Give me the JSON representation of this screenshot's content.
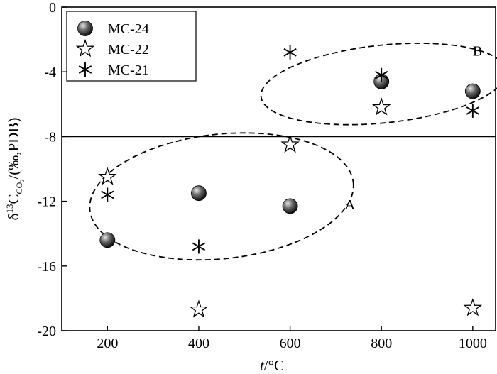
{
  "chart_data": {
    "type": "scatter",
    "xlabel_var": "t",
    "xlabel_unit": "/°C",
    "ylabel": {
      "prefix": "δ",
      "sup": "13",
      "main": "C",
      "sub": "CO₂",
      "suffix": "/(‰,PDB)"
    },
    "xlim": [
      100,
      1050
    ],
    "ylim": [
      -20,
      0
    ],
    "xticks": [
      200,
      400,
      600,
      800,
      1000
    ],
    "yticks": [
      0,
      -4,
      -8,
      -12,
      -16,
      -20
    ],
    "grid": false,
    "legend_position": "top-left",
    "reference_line_y": -8,
    "series": [
      {
        "name": "MC-24",
        "marker": "sphere",
        "points": [
          [
            200,
            -14.4
          ],
          [
            400,
            -11.5
          ],
          [
            600,
            -12.3
          ],
          [
            800,
            -4.6
          ],
          [
            1000,
            -5.2
          ]
        ]
      },
      {
        "name": "MC-22",
        "marker": "star",
        "points": [
          [
            200,
            -10.5
          ],
          [
            400,
            -18.7
          ],
          [
            600,
            -8.5
          ],
          [
            800,
            -6.2
          ],
          [
            1000,
            -18.6
          ]
        ]
      },
      {
        "name": "MC-21",
        "marker": "asterisk",
        "points": [
          [
            200,
            -11.6
          ],
          [
            400,
            -14.8
          ],
          [
            600,
            -2.8
          ],
          [
            800,
            -4.2
          ],
          [
            1000,
            -6.4
          ]
        ]
      }
    ],
    "regions": [
      {
        "label": "A",
        "cx": 450,
        "cy": -11.7,
        "rx": 290,
        "ry": 3.85,
        "label_x": 720,
        "label_y": -12.5
      },
      {
        "label": "B",
        "cx": 805,
        "cy": -4.75,
        "rx": 270,
        "ry": 2.4,
        "label_x": 1000,
        "label_y": -3.0
      }
    ]
  }
}
